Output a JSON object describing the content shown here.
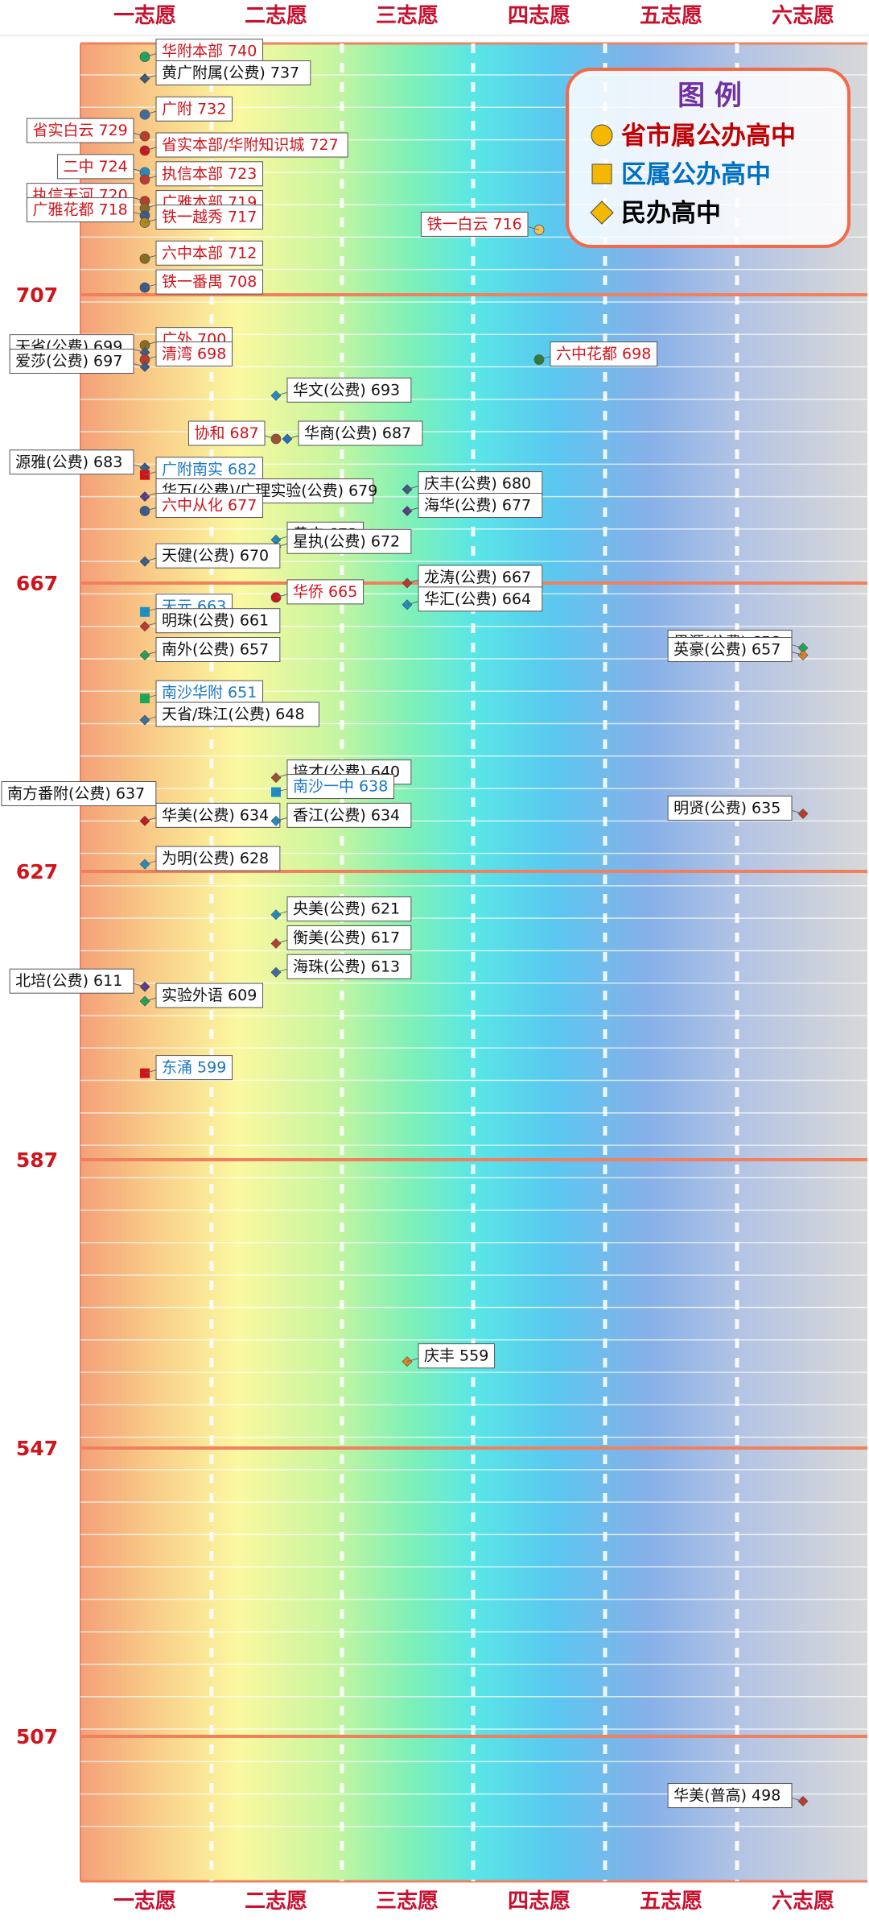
{
  "chart_data": {
    "type": "scatter",
    "x_categories": [
      "一志愿",
      "二志愿",
      "三志愿",
      "四志愿",
      "五志愿",
      "六志愿"
    ],
    "y_ticks": [
      707,
      667,
      627,
      587,
      547,
      507
    ],
    "ylim": [
      492,
      751
    ],
    "grid": true,
    "legend_position": "top-right",
    "legend": {
      "title": "图 例",
      "items": [
        {
          "shape": "circle",
          "label": "省市属公办高中",
          "color": "#c00000"
        },
        {
          "shape": "square",
          "label": "区属公办高中",
          "color": "#0070c0"
        },
        {
          "shape": "diamond",
          "label": "民办高中",
          "color": "#000000"
        }
      ]
    },
    "points": [
      {
        "name": "华附本部",
        "score": 740,
        "col": 1,
        "type": "circle",
        "dot": "#1aa85a",
        "side": "right",
        "label": "华附本部 740"
      },
      {
        "name": "黄广附属(公费)",
        "score": 737,
        "col": 1,
        "type": "diamond",
        "dot": "#3a5a7a",
        "side": "right",
        "label": "黄广附属(公费) 737"
      },
      {
        "name": "广附",
        "score": 732,
        "col": 1,
        "type": "circle",
        "dot": "#3a6ea5",
        "side": "right",
        "label": "广附 732"
      },
      {
        "name": "省实白云",
        "score": 729,
        "col": 1,
        "type": "circle",
        "dot": "#c0392b",
        "side": "left",
        "label": "省实白云 729"
      },
      {
        "name": "省实本部/华附知识城",
        "score": 727,
        "col": 1,
        "type": "circle",
        "dot": "#d0141c",
        "side": "right",
        "label": "省实本部/华附知识城 727"
      },
      {
        "name": "二中",
        "score": 724,
        "col": 1,
        "type": "circle",
        "dot": "#1a8fc8",
        "side": "left",
        "label": "二中 724"
      },
      {
        "name": "执信本部",
        "score": 723,
        "col": 1,
        "type": "circle",
        "dot": "#c0392b",
        "side": "right",
        "label": "执信本部 723"
      },
      {
        "name": "执信天河",
        "score": 720,
        "col": 1,
        "type": "circle",
        "dot": "#c0392b",
        "side": "left",
        "label": "执信天河 720"
      },
      {
        "name": "广雅本部",
        "score": 719,
        "col": 1,
        "type": "circle",
        "dot": "#8a6d1a",
        "side": "right",
        "label": "广雅本部 719"
      },
      {
        "name": "广雅花都",
        "score": 718,
        "col": 1,
        "type": "circle",
        "dot": "#3a5a8a",
        "side": "left",
        "label": "广雅花都 718"
      },
      {
        "name": "铁一越秀",
        "score": 717,
        "col": 1,
        "type": "circle",
        "dot": "#b08a1a",
        "side": "right",
        "label": "铁一越秀 717"
      },
      {
        "name": "六中本部",
        "score": 712,
        "col": 1,
        "type": "circle",
        "dot": "#8a6d1a",
        "side": "right",
        "label": "六中本部 712"
      },
      {
        "name": "铁一番禺",
        "score": 708,
        "col": 1,
        "type": "circle",
        "dot": "#3a5a8a",
        "side": "right",
        "label": "铁一番禺 708"
      },
      {
        "name": "铁一白云",
        "score": 716,
        "col": 4,
        "type": "circle",
        "dot": "#f5c05a",
        "side": "left",
        "label": "铁一白云 716"
      },
      {
        "name": "广外",
        "score": 700,
        "col": 1,
        "type": "circle",
        "dot": "#8a6d1a",
        "side": "right",
        "label": "广外 700"
      },
      {
        "name": "天省(公费)",
        "score": 699,
        "col": 1,
        "type": "diamond",
        "dot": "#3a5a8a",
        "side": "left",
        "label": "天省(公费) 699"
      },
      {
        "name": "清湾",
        "score": 698,
        "col": 1,
        "type": "circle",
        "dot": "#c0392b",
        "side": "right",
        "label": "清湾 698"
      },
      {
        "name": "爱莎(公费)",
        "score": 697,
        "col": 1,
        "type": "diamond",
        "dot": "#3a5a8a",
        "side": "left",
        "label": "爱莎(公费) 697"
      },
      {
        "name": "六中花都",
        "score": 698,
        "col": 4,
        "type": "circle",
        "dot": "#2e7d32",
        "side": "right",
        "label": "六中花都 698"
      },
      {
        "name": "华文(公费)",
        "score": 693,
        "col": 2,
        "type": "diamond",
        "dot": "#1a8fc8",
        "side": "right",
        "label": "华文(公费) 693"
      },
      {
        "name": "协和",
        "score": 687,
        "col": 2,
        "type": "circle",
        "dot": "#a0522d",
        "side": "left",
        "label": "协和 687"
      },
      {
        "name": "华商(公费)",
        "score": 687,
        "col": 2,
        "type": "diamond",
        "dot": "#1a6fc8",
        "side": "right",
        "label": "华商(公费) 687",
        "dx": 14
      },
      {
        "name": "源雅(公费)",
        "score": 683,
        "col": 1,
        "type": "diamond",
        "dot": "#3a5a8a",
        "side": "left",
        "label": "源雅(公费) 683"
      },
      {
        "name": "广附南实",
        "score": 682,
        "col": 1,
        "type": "square",
        "dot": "#d0141c",
        "side": "right",
        "label": "广附南实 682"
      },
      {
        "name": "庆丰(公费)",
        "score": 680,
        "col": 3,
        "type": "diamond",
        "dot": "#3a5a8a",
        "side": "right",
        "label": "庆丰(公费) 680"
      },
      {
        "name": "华万(公费)/广理实验(公费)",
        "score": 679,
        "col": 1,
        "type": "diamond",
        "dot": "#5a3a8a",
        "side": "right",
        "label": "华万(公费)/广理实验(公费) 679"
      },
      {
        "name": "六中从化",
        "score": 677,
        "col": 1,
        "type": "circle",
        "dot": "#3a5a8a",
        "side": "right",
        "label": "六中从化 677"
      },
      {
        "name": "海华(公费)",
        "score": 677,
        "col": 3,
        "type": "diamond",
        "dot": "#5a3a8a",
        "side": "right",
        "label": "海华(公费) 677"
      },
      {
        "name": "黄广",
        "score": 673,
        "col": 2,
        "type": "diamond",
        "dot": "#1a8fc8",
        "side": "right",
        "label": "黄广 673"
      },
      {
        "name": "星执(公费)",
        "score": 672,
        "col": 2,
        "type": "diamond",
        "dot": "#3a5a8a",
        "side": "right",
        "label": "星执(公费) 672"
      },
      {
        "name": "天健(公费)",
        "score": 670,
        "col": 1,
        "type": "diamond",
        "dot": "#3a5a8a",
        "side": "right",
        "label": "天健(公费) 670"
      },
      {
        "name": "龙涛(公费)",
        "score": 667,
        "col": 3,
        "type": "diamond",
        "dot": "#c0392b",
        "side": "right",
        "label": "龙涛(公费) 667"
      },
      {
        "name": "华侨",
        "score": 665,
        "col": 2,
        "type": "circle",
        "dot": "#d0141c",
        "side": "right",
        "label": "华侨 665"
      },
      {
        "name": "天元",
        "score": 663,
        "col": 1,
        "type": "square",
        "dot": "#1a8fc8",
        "side": "right",
        "label": "天元 663"
      },
      {
        "name": "华汇(公费)",
        "score": 664,
        "col": 3,
        "type": "diamond",
        "dot": "#1a8fc8",
        "side": "right",
        "label": "华汇(公费) 664"
      },
      {
        "name": "明珠(公费)",
        "score": 661,
        "col": 1,
        "type": "diamond",
        "dot": "#c0392b",
        "side": "right",
        "label": "明珠(公费) 661"
      },
      {
        "name": "思源(公费)",
        "score": 658,
        "col": 6,
        "type": "diamond",
        "dot": "#1aa85a",
        "side": "left",
        "label": "思源(公费) 658"
      },
      {
        "name": "英豪(公费)",
        "score": 657,
        "col": 6,
        "type": "diamond",
        "dot": "#e67e22",
        "side": "left",
        "label": "英豪(公费) 657"
      },
      {
        "name": "南外(公费)",
        "score": 657,
        "col": 1,
        "type": "diamond",
        "dot": "#1aa85a",
        "side": "right",
        "label": "南外(公费) 657"
      },
      {
        "name": "南沙华附",
        "score": 651,
        "col": 1,
        "type": "square",
        "dot": "#1aa85a",
        "side": "right",
        "label": "南沙华附 651"
      },
      {
        "name": "天省/珠江(公费)",
        "score": 648,
        "col": 1,
        "type": "diamond",
        "dot": "#3a6ea5",
        "side": "right",
        "label": "天省/珠江(公费) 648"
      },
      {
        "name": "培才(公费)",
        "score": 640,
        "col": 2,
        "type": "diamond",
        "dot": "#a0522d",
        "side": "right",
        "label": "培才(公费) 640"
      },
      {
        "name": "南方番附(公费)",
        "score": 637,
        "col": 1,
        "type": "diamond",
        "dot": "#6a7a3a",
        "side": "left",
        "label": "南方番附(公费) 637"
      },
      {
        "name": "南沙一中",
        "score": 638,
        "col": 2,
        "type": "square",
        "dot": "#1a8fc8",
        "side": "right",
        "label": "南沙一中 638"
      },
      {
        "name": "明贤(公费)",
        "score": 635,
        "col": 6,
        "type": "diamond",
        "dot": "#c0392b",
        "side": "left",
        "label": "明贤(公费) 635"
      },
      {
        "name": "华美(公费)",
        "score": 634,
        "col": 1,
        "type": "diamond",
        "dot": "#d0141c",
        "side": "right",
        "label": "华美(公费) 634"
      },
      {
        "name": "香江(公费)",
        "score": 634,
        "col": 2,
        "type": "diamond",
        "dot": "#1a8fc8",
        "side": "right",
        "label": "香江(公费) 634"
      },
      {
        "name": "为明(公费)",
        "score": 628,
        "col": 1,
        "type": "diamond",
        "dot": "#1a8fc8",
        "side": "right",
        "label": "为明(公费) 628"
      },
      {
        "name": "央美(公费)",
        "score": 621,
        "col": 2,
        "type": "diamond",
        "dot": "#1a8fc8",
        "side": "right",
        "label": "央美(公费) 621"
      },
      {
        "name": "衡美(公费)",
        "score": 617,
        "col": 2,
        "type": "diamond",
        "dot": "#c0392b",
        "side": "right",
        "label": "衡美(公费) 617"
      },
      {
        "name": "海珠(公费)",
        "score": 613,
        "col": 2,
        "type": "diamond",
        "dot": "#3a6ea5",
        "side": "right",
        "label": "海珠(公费) 613"
      },
      {
        "name": "北培(公费)",
        "score": 611,
        "col": 1,
        "type": "diamond",
        "dot": "#5a3a8a",
        "side": "left",
        "label": "北培(公费) 611"
      },
      {
        "name": "实验外语",
        "score": 609,
        "col": 1,
        "type": "diamond",
        "dot": "#1aa85a",
        "side": "right",
        "label": "实验外语 609"
      },
      {
        "name": "东涌",
        "score": 599,
        "col": 1,
        "type": "square",
        "dot": "#d0141c",
        "side": "right",
        "label": "东涌 599"
      },
      {
        "name": "庆丰",
        "score": 559,
        "col": 3,
        "type": "diamond",
        "dot": "#e67e22",
        "side": "right",
        "label": "庆丰 559"
      },
      {
        "name": "华美(普高)",
        "score": 498,
        "col": 6,
        "type": "diamond",
        "dot": "#c0392b",
        "side": "left",
        "label": "华美(普高) 498"
      }
    ]
  }
}
